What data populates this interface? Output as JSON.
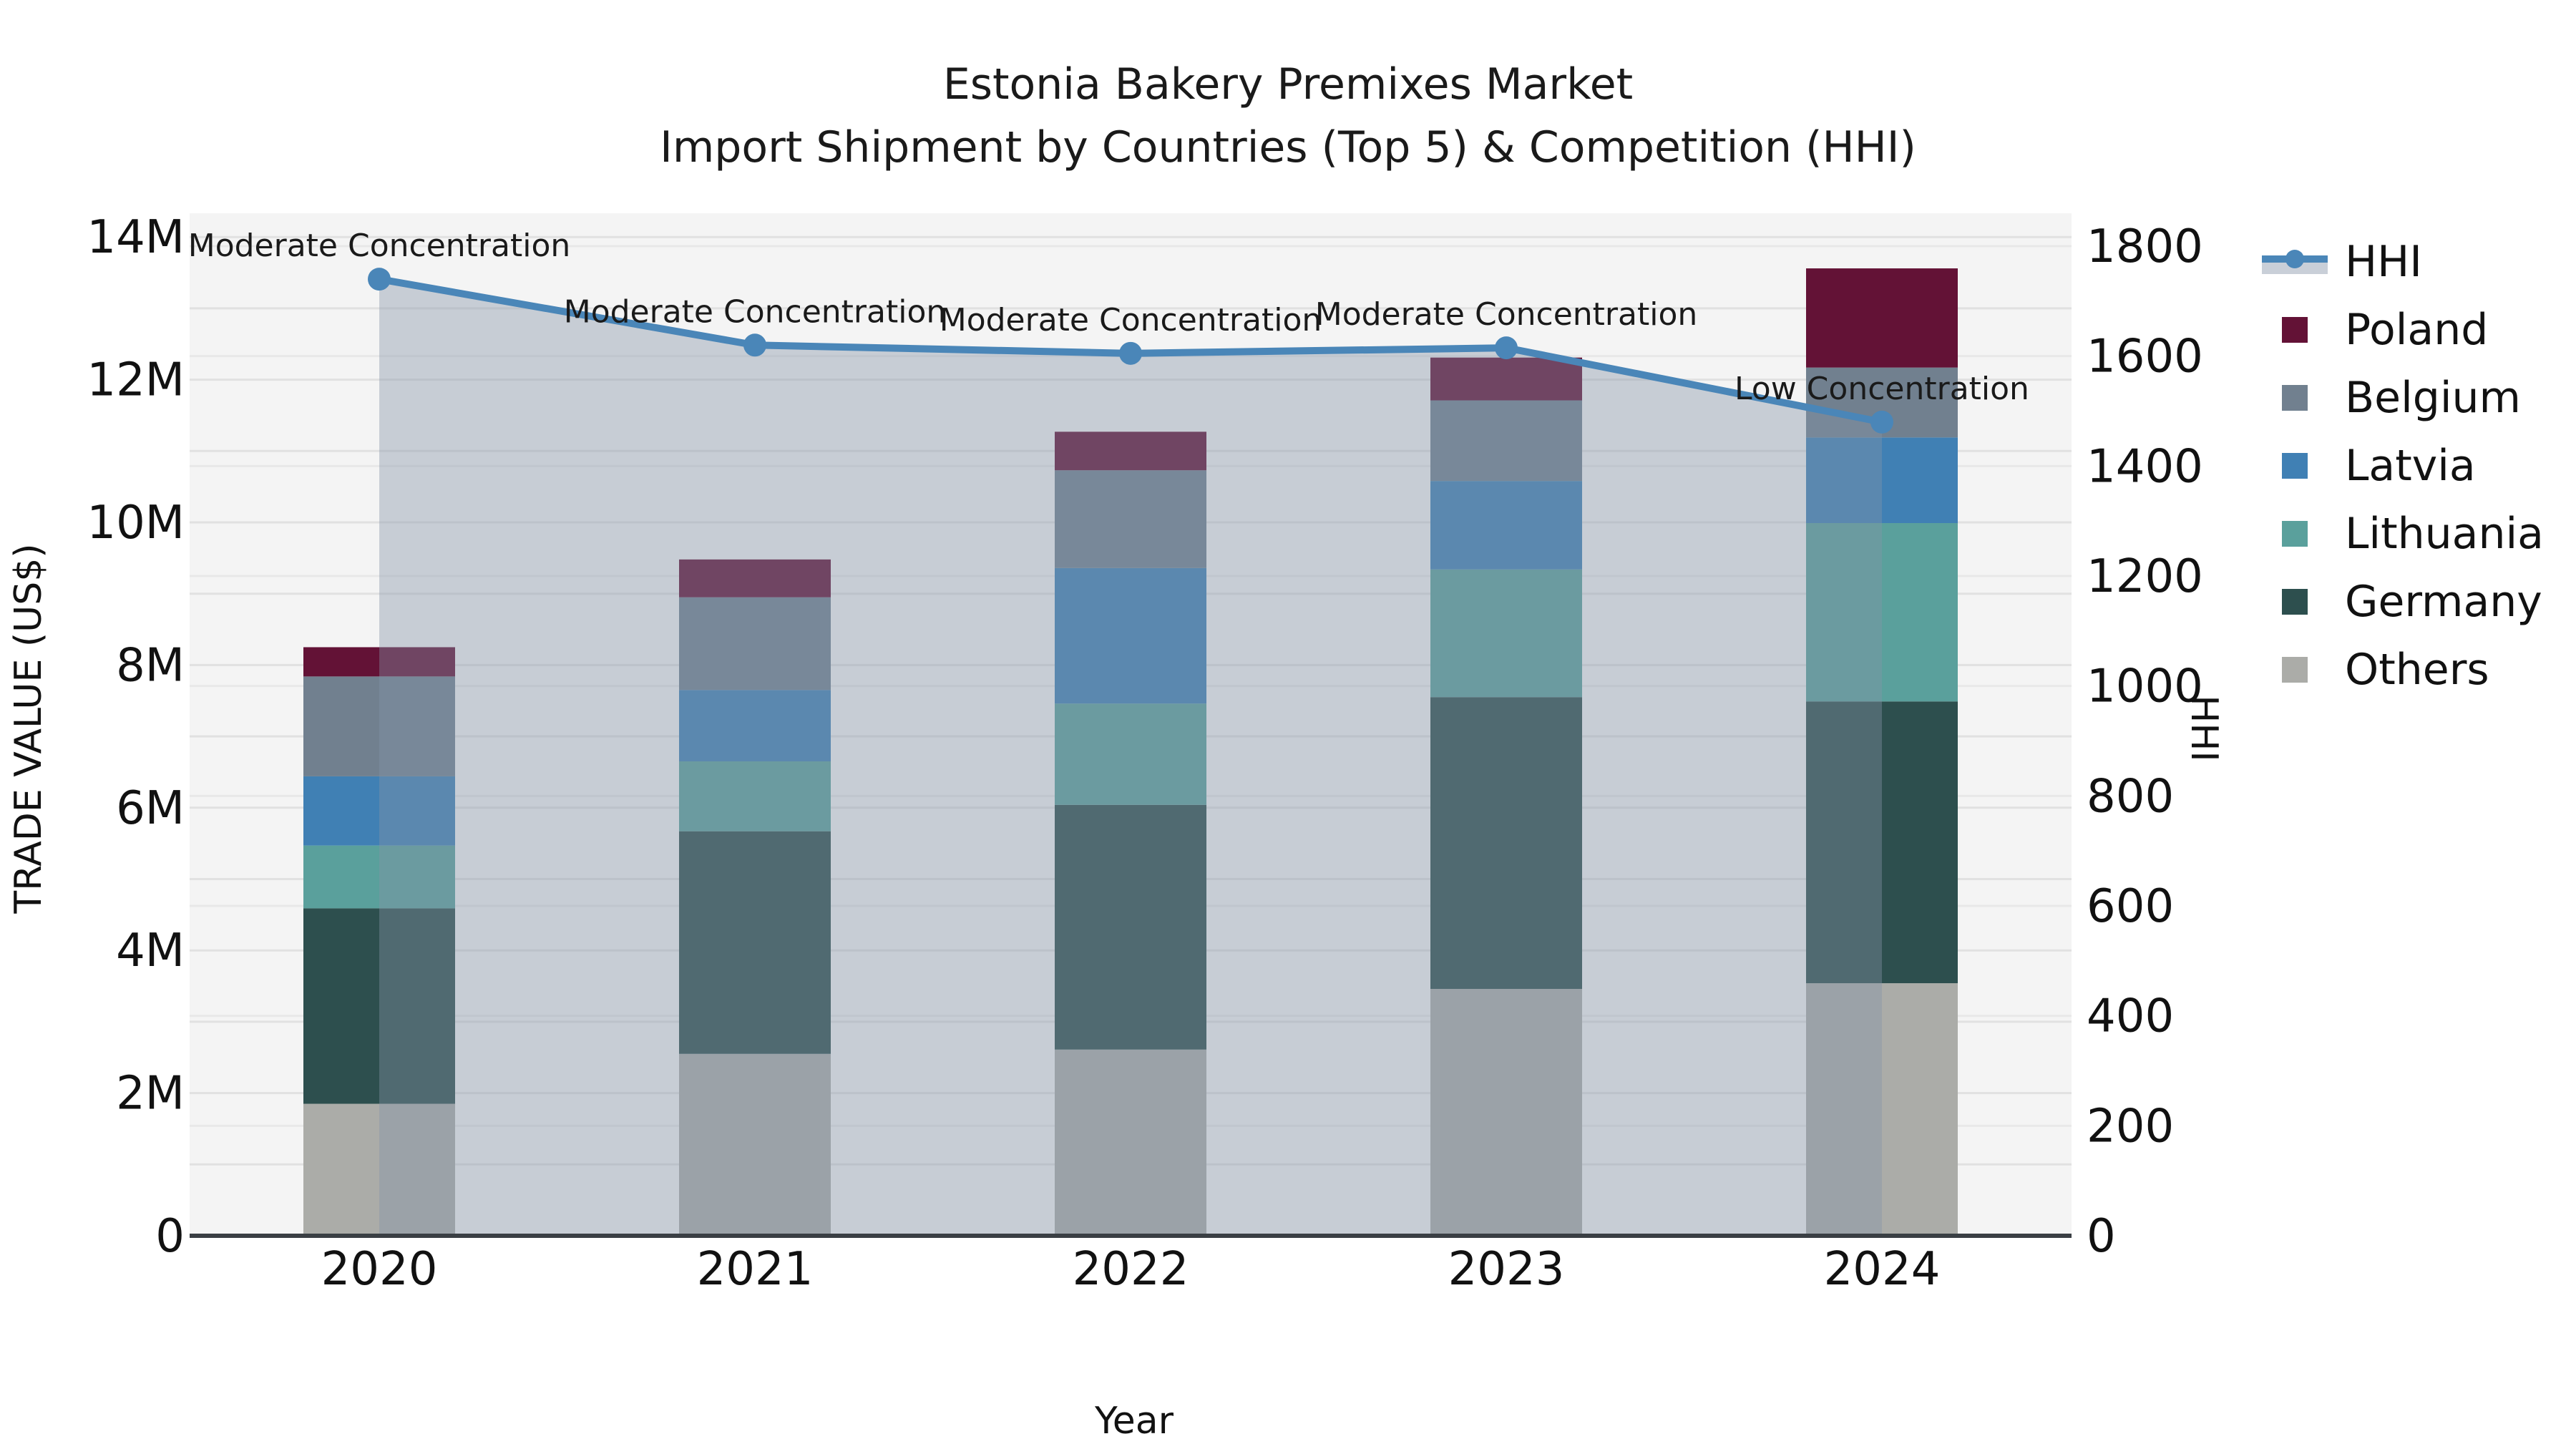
{
  "title": {
    "line1": "Estonia Bakery Premixes Market",
    "line2": "Import Shipment by Countries (Top 5) & Competition (HHI)"
  },
  "axes": {
    "x_label": "Year",
    "y_left_label": "TRADE VALUE (US$)",
    "y_right_label": "HHI",
    "y_left_ticks": [
      "0",
      "2M",
      "4M",
      "6M",
      "8M",
      "10M",
      "12M",
      "14M"
    ],
    "y_right_ticks": [
      "0",
      "200",
      "400",
      "600",
      "800",
      "1000",
      "1200",
      "1400",
      "1600",
      "1800"
    ],
    "x_ticks": [
      "2020",
      "2021",
      "2022",
      "2023",
      "2024"
    ]
  },
  "legend": {
    "items": [
      {
        "label": "HHI",
        "type": "line",
        "color": "#4a86b8"
      },
      {
        "label": "Poland",
        "type": "patch",
        "color": "#631236"
      },
      {
        "label": "Belgium",
        "type": "patch",
        "color": "#71808f"
      },
      {
        "label": "Latvia",
        "type": "patch",
        "color": "#4080b4"
      },
      {
        "label": "Lithuania",
        "type": "patch",
        "color": "#5aa09c"
      },
      {
        "label": "Germany",
        "type": "patch",
        "color": "#2d4f4e"
      },
      {
        "label": "Others",
        "type": "patch",
        "color": "#abaca8"
      }
    ]
  },
  "chart_data": {
    "type": "bar",
    "subtype": "stacked-bars-with-line",
    "categories": [
      "2020",
      "2021",
      "2022",
      "2023",
      "2024"
    ],
    "bar_value_unit": "million US$",
    "series": [
      {
        "name": "Others",
        "color": "#abaca8",
        "values": [
          1.85,
          2.55,
          2.61,
          3.46,
          3.54
        ]
      },
      {
        "name": "Germany",
        "color": "#2d4f4e",
        "values": [
          2.74,
          3.12,
          3.43,
          4.09,
          3.95
        ]
      },
      {
        "name": "Lithuania",
        "color": "#5aa09c",
        "values": [
          0.88,
          0.98,
          1.42,
          1.79,
          2.5
        ]
      },
      {
        "name": "Latvia",
        "color": "#4080b4",
        "values": [
          0.97,
          1.0,
          1.9,
          1.24,
          1.2
        ]
      },
      {
        "name": "Belgium",
        "color": "#71808f",
        "values": [
          1.4,
          1.3,
          1.37,
          1.13,
          0.98
        ]
      },
      {
        "name": "Poland",
        "color": "#631236",
        "values": [
          0.41,
          0.53,
          0.54,
          0.6,
          1.39
        ]
      }
    ],
    "bar_totals": [
      8.25,
      9.48,
      11.27,
      12.31,
      13.56
    ],
    "line_series": {
      "name": "HHI",
      "color": "#4a86b8",
      "values": [
        1740,
        1620,
        1605,
        1615,
        1480
      ],
      "area_fill": "rgba(133,147,168,0.40)"
    },
    "annotations": [
      {
        "category": "2020",
        "text": "Moderate Concentration"
      },
      {
        "category": "2021",
        "text": "Moderate Concentration"
      },
      {
        "category": "2022",
        "text": "Moderate Concentration"
      },
      {
        "category": "2023",
        "text": "Moderate Concentration"
      },
      {
        "category": "2024",
        "text": "Low Concentration"
      }
    ],
    "title": "Estonia Bakery Premixes Market — Import Shipment by Countries (Top 5) & Competition (HHI)",
    "xlabel": "Year",
    "ylabel_left": "TRADE VALUE (US$)",
    "ylabel_right": "HHI",
    "ylim_left_millions": [
      0,
      14.33
    ],
    "ylim_right": [
      0,
      1860
    ],
    "grid": true,
    "legend_position": "right"
  },
  "colors": {
    "plot_background": "#f4f4f4",
    "figure_background": "#ffffff",
    "gridline_major": "#e1e1e1",
    "gridline_secondary": "#e8e8e8",
    "axis_line": "#3a3f44",
    "text": "#1a1a1a",
    "hhi_line": "#4a86b8",
    "hhi_area_effective": "#c9cfd8"
  }
}
